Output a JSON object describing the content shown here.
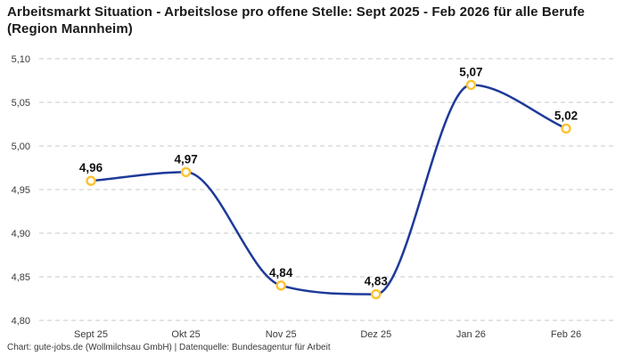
{
  "footer": {
    "credit": "Chart: gute-jobs.de (Wollmilchsau GmbH) | Datenquelle: Bundesagentur für Arbeit"
  },
  "chart_data": {
    "type": "line",
    "title": "Arbeitsmarkt Situation - Arbeitslose pro offene Stelle: Sept 2025 - Feb 2026 für alle Berufe (Region Mannheim)",
    "categories": [
      "Sept 25",
      "Okt 25",
      "Nov 25",
      "Dez 25",
      "Jan 26",
      "Feb 26"
    ],
    "values": [
      4.96,
      4.97,
      4.84,
      4.83,
      5.07,
      5.02
    ],
    "value_labels": [
      "4,96",
      "4,97",
      "4,84",
      "4,83",
      "5,07",
      "5,02"
    ],
    "xlabel": "",
    "ylabel": "",
    "ylim": [
      4.8,
      5.1
    ],
    "ytick_step": 0.05,
    "ytick_labels": [
      "4,80",
      "4,85",
      "4,90",
      "4,95",
      "5,00",
      "5,05",
      "5,10"
    ],
    "grid": "horizontal-dashed",
    "legend": "none",
    "curve": "monotone",
    "colors": {
      "line": "#1e3a99",
      "marker_ring": "#fcc32f",
      "marker_fill": "#ffffff",
      "gridline": "#c9c9c9"
    }
  }
}
